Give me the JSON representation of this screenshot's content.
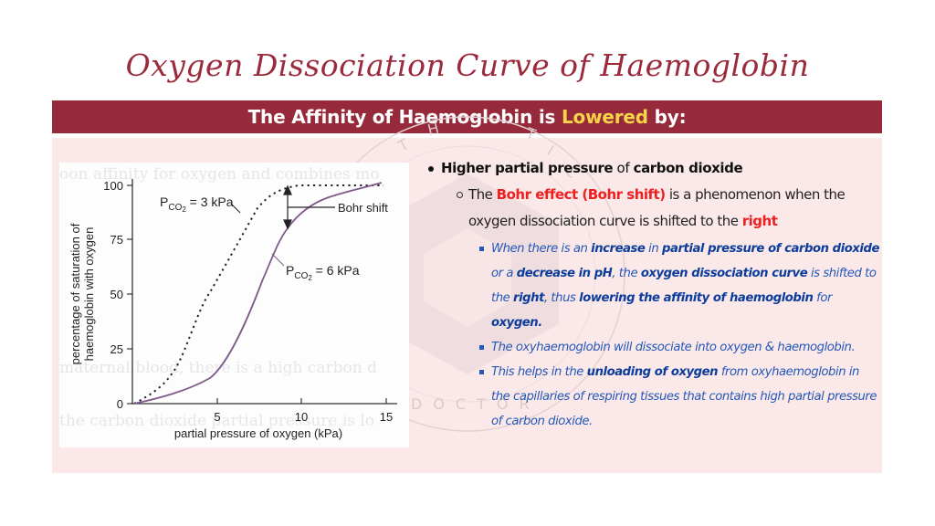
{
  "slide": {
    "title": "Oxygen Dissociation Curve of Haemoglobin",
    "banner": {
      "prefix": "The Affinity of Haemoglobin is ",
      "highlight": "Lowered",
      "suffix": " by:"
    },
    "colors": {
      "title": "#9a2a3c",
      "banner_bg": "#962a3a",
      "banner_highlight": "#f7d44a",
      "panel_bg": "#fbe9ea",
      "red_emphasis": "#ee2020",
      "blue_text": "#2458b8",
      "blue_bold": "#0c3d9c"
    },
    "watermark": {
      "top_text": "THE CRITICAL",
      "bottom_text": "DOCTOR"
    }
  },
  "notes": {
    "level1": {
      "part1": "Higher partial pressure",
      "part2": " of ",
      "part3": "carbon dioxide"
    },
    "level2": {
      "part1": "The ",
      "part2": "Bohr effect (Bohr shift)",
      "part3": " is a phenomenon when the oxygen dissociation curve is shifted to the ",
      "part4": "right"
    },
    "level3": [
      {
        "segments": [
          {
            "t": "When there is an ",
            "b": false
          },
          {
            "t": "increase",
            "b": true
          },
          {
            "t": " in ",
            "b": false
          },
          {
            "t": "partial pressure of carbon dioxide",
            "b": true
          },
          {
            "t": " or a ",
            "b": false
          },
          {
            "t": "decrease in pH",
            "b": true
          },
          {
            "t": ", the ",
            "b": false
          },
          {
            "t": "oxygen dissociation curve",
            "b": true
          },
          {
            "t": " is shifted to the ",
            "b": false
          },
          {
            "t": "right",
            "b": true
          },
          {
            "t": ", thus ",
            "b": false
          },
          {
            "t": "lowering the affinity of haemoglobin",
            "b": true
          },
          {
            "t": " for ",
            "b": false
          },
          {
            "t": "oxygen.",
            "b": true
          }
        ]
      },
      {
        "segments": [
          {
            "t": "The oxyhaemoglobin will dissociate into oxygen & haemoglobin.",
            "b": false
          }
        ]
      },
      {
        "segments": [
          {
            "t": "This helps in the ",
            "b": false
          },
          {
            "t": "unloading of oxygen",
            "b": true
          },
          {
            "t": " from oxyhaemoglobin in the capillaries of respiring tissues that contains high partial pressure of carbon dioxide.",
            "b": false
          }
        ]
      }
    ]
  },
  "chart_data": {
    "type": "line",
    "title": "",
    "xlabel": "partial pressure of oxygen (kPa)",
    "ylabel": "percentage of saturation of haemoglobin with oxygen",
    "xlim": [
      0,
      15.5
    ],
    "ylim": [
      0,
      100
    ],
    "xticks": [
      "5",
      "10",
      "15"
    ],
    "yticks": [
      "0",
      "25",
      "50",
      "75",
      "100"
    ],
    "grid": false,
    "series": [
      {
        "name": "PCO2 = 3 kPa",
        "label_main": "P",
        "label_sub": "CO",
        "label_subsub": "2",
        "label_value": " = 3 kPa",
        "style": "dotted",
        "color": "#222222",
        "x": [
          0.1,
          1,
          2,
          2.6,
          3.5,
          4.6,
          5.5,
          6.5,
          7.4,
          8.3,
          9.1,
          11,
          13,
          14.7
        ],
        "y": [
          0,
          4,
          11,
          17,
          32,
          51,
          67,
          81,
          90,
          95,
          98,
          99.5,
          100,
          100
        ]
      },
      {
        "name": "PCO2 = 6 kPa",
        "label_main": "P",
        "label_sub": "CO",
        "label_subsub": "2",
        "label_value": " = 6 kPa",
        "style": "solid",
        "color": "#7e5a8a",
        "x": [
          0.1,
          1,
          2,
          3,
          4.6,
          5.5,
          6.5,
          7.5,
          8.3,
          9,
          10,
          11,
          12.5,
          14.7
        ],
        "y": [
          0,
          2.5,
          5,
          8,
          12,
          22,
          38,
          53,
          65,
          78,
          86,
          91,
          96,
          100
        ]
      }
    ],
    "annotations": [
      {
        "text": "Bohr shift",
        "type": "double-arrow",
        "x": 9.1,
        "y_from": 98,
        "y_to": 80
      }
    ]
  }
}
